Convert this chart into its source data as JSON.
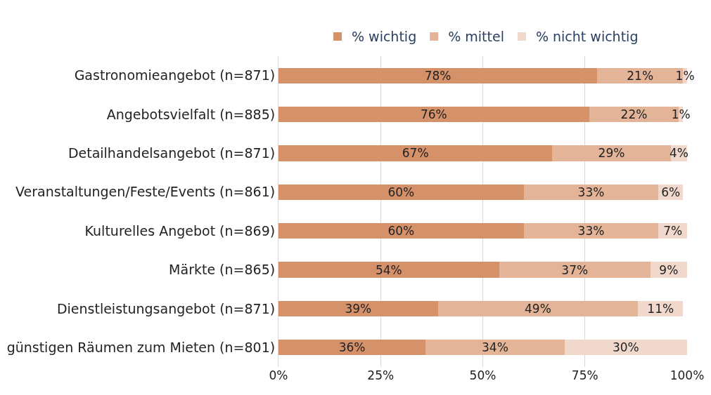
{
  "chart_data": {
    "type": "bar",
    "orientation": "horizontal",
    "stacked": true,
    "categories": [
      "Gastronomieangebot (n=871)",
      "Angebotsvielfalt (n=885)",
      "Detailhandelsangebot (n=871)",
      "Veranstaltungen/Feste/Events (n=861)",
      "Kulturelles Angebot (n=869)",
      "Märkte (n=865)",
      "Dienstleistungsangebot (n=871)",
      "günstigen Räumen zum Mieten (n=801)"
    ],
    "series": [
      {
        "name": "% wichtig",
        "color": "#d4916a",
        "values": [
          78,
          76,
          67,
          60,
          60,
          54,
          39,
          36
        ],
        "value_labels": [
          "78%",
          "76%",
          "67%",
          "60%",
          "60%",
          "54%",
          "39%",
          "36%"
        ]
      },
      {
        "name": "% mittel",
        "color": "#e3b497",
        "values": [
          21,
          22,
          29,
          33,
          33,
          37,
          49,
          34
        ],
        "value_labels": [
          "21%",
          "22%",
          "29%",
          "33%",
          "33%",
          "37%",
          "49%",
          "34%"
        ]
      },
      {
        "name": "% nicht wichtig",
        "color": "#f0d9cc",
        "values": [
          1,
          1,
          4,
          6,
          7,
          9,
          11,
          30
        ],
        "value_labels": [
          "1%",
          "1%",
          "4%",
          "6%",
          "7%",
          "9%",
          "11%",
          "30%"
        ]
      }
    ],
    "xlim": [
      0,
      100
    ],
    "xticks": [
      {
        "value": 0,
        "label": "0%"
      },
      {
        "value": 25,
        "label": "25%"
      },
      {
        "value": 50,
        "label": "50%"
      },
      {
        "value": 75,
        "label": "75%"
      },
      {
        "value": 100,
        "label": "100%"
      }
    ],
    "grid": "x",
    "legend": "top"
  }
}
